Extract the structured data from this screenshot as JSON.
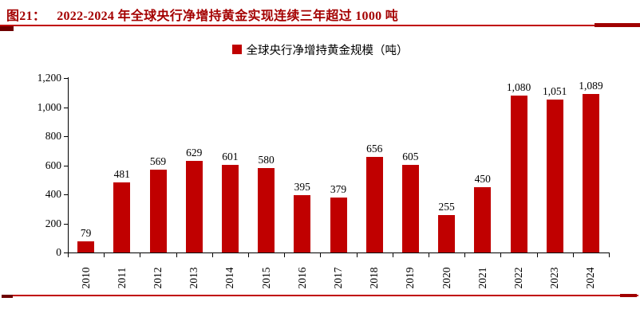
{
  "header": {
    "figure_label": "图21：",
    "title": "2022-2024 年全球央行净增持黄金实现连续三年超过 1000 吨"
  },
  "legend": {
    "label": "全球央行净增持黄金规模（吨）",
    "swatch_color": "#C00000"
  },
  "chart_data": {
    "type": "bar",
    "title": "2022-2024 年全球央行净增持黄金实现连续三年超过 1000 吨",
    "legend": [
      "全球央行净增持黄金规模（吨）"
    ],
    "categories": [
      "2010",
      "2011",
      "2012",
      "2013",
      "2014",
      "2015",
      "2016",
      "2017",
      "2018",
      "2019",
      "2020",
      "2021",
      "2022",
      "2023",
      "2024"
    ],
    "values": [
      79,
      481,
      569,
      629,
      601,
      580,
      395,
      379,
      656,
      605,
      255,
      450,
      1080,
      1051,
      1089
    ],
    "xlabel": "",
    "ylabel": "",
    "ylim": [
      0,
      1200
    ],
    "y_tick_step": 200,
    "y_tick_labels": [
      "0",
      "200",
      "400",
      "600",
      "800",
      "1,000",
      "1,200"
    ],
    "grid": false,
    "legend_position": "top-center",
    "value_labels": true,
    "bar_color": "#C00000"
  },
  "colors": {
    "accent_red": "#C00000",
    "title_red": "#A40000",
    "cap_dark_red": "#6E0000",
    "axis_black": "#000000",
    "background": "#FFFFFF"
  }
}
